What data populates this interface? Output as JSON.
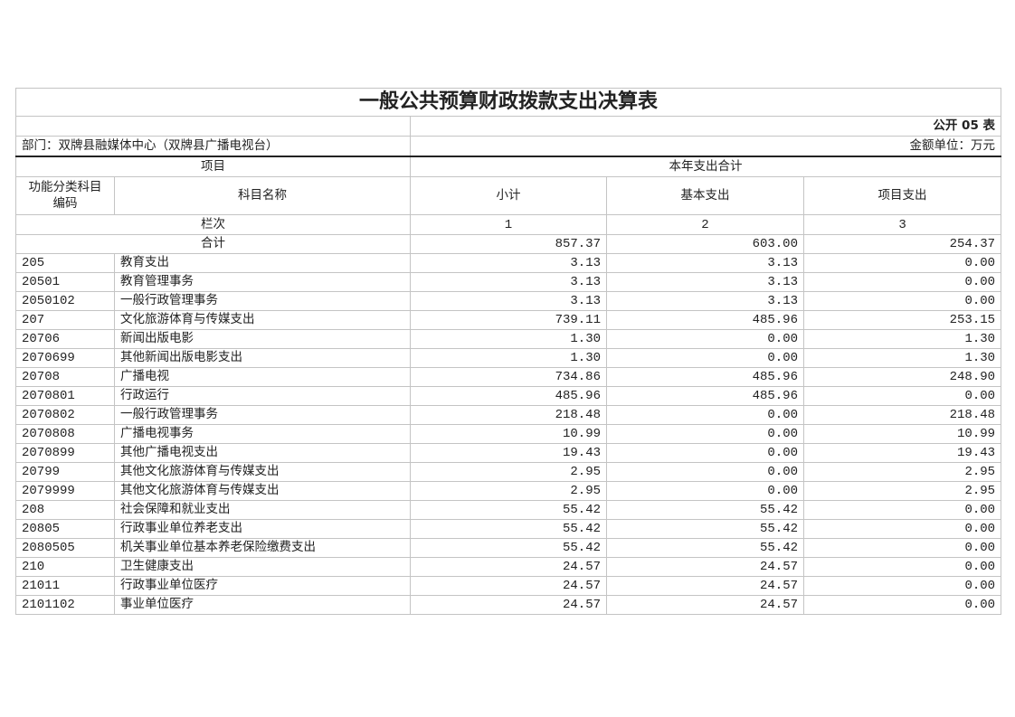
{
  "title": "一般公共预算财政拨款支出决算表",
  "form_no": "公开 05 表",
  "department": "部门：双牌县融媒体中心（双牌县广播电视台）",
  "unit": "金额单位：万元",
  "header": {
    "project": "项目",
    "total_group": "本年支出合计",
    "code": "功能分类科目编码",
    "name": "科目名称",
    "subtotal": "小计",
    "basic": "基本支出",
    "project_exp": "项目支出",
    "column_index_label": "栏次",
    "col1": "1",
    "col2": "2",
    "col3": "3"
  },
  "total": {
    "label": "合计",
    "subtotal": "857.37",
    "basic": "603.00",
    "project": "254.37"
  },
  "rows": [
    {
      "code": "205",
      "name": "教育支出",
      "subtotal": "3.13",
      "basic": "3.13",
      "project": "0.00"
    },
    {
      "code": "20501",
      "name": "教育管理事务",
      "subtotal": "3.13",
      "basic": "3.13",
      "project": "0.00"
    },
    {
      "code": "2050102",
      "name": "一般行政管理事务",
      "subtotal": "3.13",
      "basic": "3.13",
      "project": "0.00"
    },
    {
      "code": "207",
      "name": "文化旅游体育与传媒支出",
      "subtotal": "739.11",
      "basic": "485.96",
      "project": "253.15"
    },
    {
      "code": "20706",
      "name": "新闻出版电影",
      "subtotal": "1.30",
      "basic": "0.00",
      "project": "1.30"
    },
    {
      "code": "2070699",
      "name": "其他新闻出版电影支出",
      "subtotal": "1.30",
      "basic": "0.00",
      "project": "1.30"
    },
    {
      "code": "20708",
      "name": "广播电视",
      "subtotal": "734.86",
      "basic": "485.96",
      "project": "248.90"
    },
    {
      "code": "2070801",
      "name": "行政运行",
      "subtotal": "485.96",
      "basic": "485.96",
      "project": "0.00"
    },
    {
      "code": "2070802",
      "name": "一般行政管理事务",
      "subtotal": "218.48",
      "basic": "0.00",
      "project": "218.48"
    },
    {
      "code": "2070808",
      "name": "广播电视事务",
      "subtotal": "10.99",
      "basic": "0.00",
      "project": "10.99"
    },
    {
      "code": "2070899",
      "name": "其他广播电视支出",
      "subtotal": "19.43",
      "basic": "0.00",
      "project": "19.43"
    },
    {
      "code": "20799",
      "name": "其他文化旅游体育与传媒支出",
      "subtotal": "2.95",
      "basic": "0.00",
      "project": "2.95"
    },
    {
      "code": "2079999",
      "name": "其他文化旅游体育与传媒支出",
      "subtotal": "2.95",
      "basic": "0.00",
      "project": "2.95"
    },
    {
      "code": "208",
      "name": "社会保障和就业支出",
      "subtotal": "55.42",
      "basic": "55.42",
      "project": "0.00"
    },
    {
      "code": "20805",
      "name": "行政事业单位养老支出",
      "subtotal": "55.42",
      "basic": "55.42",
      "project": "0.00"
    },
    {
      "code": "2080505",
      "name": "机关事业单位基本养老保险缴费支出",
      "subtotal": "55.42",
      "basic": "55.42",
      "project": "0.00"
    },
    {
      "code": "210",
      "name": "卫生健康支出",
      "subtotal": "24.57",
      "basic": "24.57",
      "project": "0.00"
    },
    {
      "code": "21011",
      "name": "行政事业单位医疗",
      "subtotal": "24.57",
      "basic": "24.57",
      "project": "0.00"
    },
    {
      "code": "2101102",
      "name": "事业单位医疗",
      "subtotal": "24.57",
      "basic": "24.57",
      "project": "0.00"
    }
  ]
}
